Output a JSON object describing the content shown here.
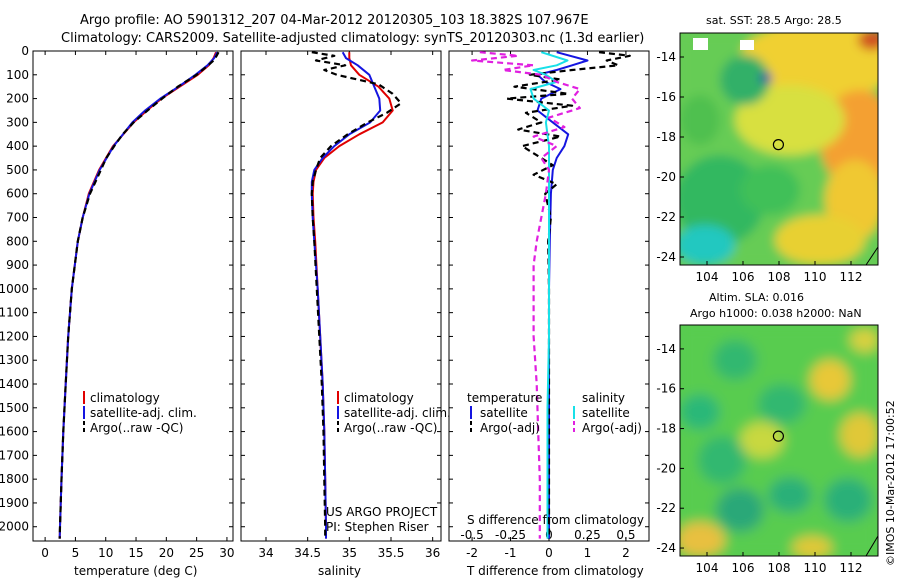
{
  "header": {
    "line1": "Argo profile: AO 5901312_207 04-Mar-2012 20120305_103 18.382S 107.967E",
    "line2": "Climatology: CARS2009. Satellite-adjusted climatology: synTS_20120303.nc (1.3d earlier)"
  },
  "colors": {
    "climatology": "#e00000",
    "satellite": "#1515e0",
    "argo": "#000000",
    "salinity_sat": "#18e0e8",
    "salinity_argo": "#e020e0"
  },
  "chart_data": [
    {
      "type": "line",
      "id": "temperature",
      "xlabel": "temperature (deg C)",
      "xlim": [
        -2,
        31
      ],
      "xticks": [
        0,
        5,
        10,
        15,
        20,
        25,
        30
      ],
      "ylim": [
        0,
        2060
      ],
      "yticks": [
        0,
        100,
        200,
        300,
        400,
        500,
        600,
        700,
        800,
        900,
        1000,
        1100,
        1200,
        1300,
        1400,
        1500,
        1600,
        1700,
        1800,
        1900,
        2000
      ],
      "legend": [
        "climatology",
        "satellite-adj. clim.",
        "Argo(..raw -QC)"
      ],
      "series": [
        {
          "name": "climatology",
          "depth": [
            5,
            30,
            60,
            100,
            150,
            200,
            250,
            300,
            400,
            500,
            600,
            700,
            800,
            1000,
            1200,
            1400,
            1600,
            1800,
            2000,
            2050
          ],
          "values": [
            28.2,
            27.8,
            27.0,
            25.2,
            22.2,
            19.2,
            16.8,
            14.6,
            11.2,
            8.9,
            7.2,
            6.2,
            5.4,
            4.4,
            3.8,
            3.4,
            3.0,
            2.7,
            2.45,
            2.4
          ]
        },
        {
          "name": "satellite",
          "depth": [
            5,
            30,
            60,
            100,
            150,
            200,
            250,
            300,
            400,
            500,
            600,
            700,
            800,
            1000,
            1200,
            1400,
            1600,
            1800,
            2000,
            2050
          ],
          "values": [
            28.4,
            27.9,
            26.8,
            24.8,
            22.0,
            19.0,
            16.5,
            14.4,
            11.3,
            9.0,
            7.3,
            6.2,
            5.4,
            4.4,
            3.8,
            3.4,
            3.0,
            2.7,
            2.45,
            2.4
          ]
        },
        {
          "name": "Argo",
          "depth": [
            5,
            20,
            40,
            60,
            100,
            150,
            200,
            250,
            300,
            350,
            400,
            450,
            500,
            600,
            700,
            800,
            1000,
            1200,
            1400,
            1600,
            1800,
            2000,
            2050
          ],
          "values": [
            28.6,
            28.3,
            27.8,
            26.9,
            25.0,
            21.9,
            19.3,
            16.9,
            14.6,
            12.8,
            11.4,
            10.1,
            9.2,
            7.4,
            6.2,
            5.4,
            4.4,
            3.8,
            3.4,
            3.0,
            2.7,
            2.45,
            2.4
          ]
        }
      ]
    },
    {
      "type": "line",
      "id": "salinity",
      "xlabel": "salinity",
      "xlim": [
        33.7,
        36.1
      ],
      "xticks": [
        34,
        34.5,
        35,
        35.5,
        36
      ],
      "ylim": [
        0,
        2060
      ],
      "legend": [
        "climatology",
        "satellite-adj. clim.",
        "Argo(..raw -QC)"
      ],
      "annotation": [
        "US ARGO PROJECT",
        "PI: Stephen Riser"
      ],
      "series": [
        {
          "name": "climatology",
          "depth": [
            5,
            30,
            60,
            100,
            150,
            200,
            250,
            300,
            350,
            400,
            450,
            500,
            550,
            600,
            700,
            800,
            1000,
            1200,
            1400,
            1600,
            1800,
            2000,
            2050
          ],
          "values": [
            35.0,
            35.0,
            35.02,
            35.12,
            35.35,
            35.48,
            35.52,
            35.4,
            35.12,
            34.88,
            34.7,
            34.6,
            34.57,
            34.56,
            34.57,
            34.59,
            34.62,
            34.65,
            34.68,
            34.7,
            34.71,
            34.72,
            34.72
          ]
        },
        {
          "name": "satellite",
          "depth": [
            5,
            30,
            60,
            100,
            150,
            200,
            250,
            300,
            350,
            400,
            450,
            500,
            550,
            600,
            700,
            800,
            1000,
            1200,
            1400,
            1600,
            1800,
            2000,
            2050
          ],
          "values": [
            34.92,
            34.96,
            35.1,
            35.24,
            35.3,
            35.36,
            35.37,
            35.25,
            35.0,
            34.82,
            34.68,
            34.58,
            34.55,
            34.55,
            34.56,
            34.58,
            34.62,
            34.65,
            34.68,
            34.7,
            34.71,
            34.72,
            34.72
          ]
        },
        {
          "name": "Argo",
          "depth": [
            5,
            20,
            40,
            60,
            80,
            100,
            140,
            180,
            220,
            260,
            300,
            350,
            400,
            450,
            500,
            550,
            600,
            700,
            800,
            1000,
            1200,
            1400,
            1600,
            1800,
            2000,
            2050
          ],
          "values": [
            34.55,
            34.82,
            34.6,
            34.95,
            34.7,
            34.85,
            35.35,
            35.52,
            35.62,
            35.45,
            35.22,
            34.98,
            34.78,
            34.65,
            34.6,
            34.56,
            34.55,
            34.56,
            34.58,
            34.61,
            34.64,
            34.67,
            34.69,
            34.7,
            34.71,
            34.71
          ]
        }
      ]
    },
    {
      "type": "line",
      "id": "difference",
      "xlabel": "T difference from climatology",
      "xlim": [
        -2.6,
        2.6
      ],
      "xticks": [
        -2,
        -1,
        0,
        1,
        2
      ],
      "secondary_xlabel": "S difference from climatology",
      "secondary_ticks": [
        {
          "v": -0.5,
          "label": "-0.5"
        },
        {
          "v": -0.25,
          "label": "-0.25"
        },
        {
          "v": 0,
          "label": "0"
        },
        {
          "v": 0.25,
          "label": "0.25"
        },
        {
          "v": 0.5,
          "label": "0.5"
        }
      ],
      "ylim": [
        0,
        2060
      ],
      "legend": {
        "temperature": {
          "title": "temperature",
          "items": [
            "satellite",
            "Argo(-adj)"
          ]
        },
        "salinity": {
          "title": "salinity",
          "items": [
            "satellite",
            "Argo(-adj)"
          ]
        }
      },
      "series": [
        {
          "name": "T satellite",
          "depth": [
            5,
            40,
            60,
            80,
            100,
            130,
            160,
            200,
            250,
            300,
            350,
            400,
            450,
            500,
            600,
            800,
            1000,
            1200,
            1500,
            1800,
            2050
          ],
          "values": [
            0.2,
            1.0,
            0.6,
            0.2,
            -0.3,
            -0.1,
            0.3,
            -0.2,
            -0.3,
            0.1,
            0.5,
            0.4,
            0.2,
            0.1,
            0.05,
            0.02,
            0,
            0,
            0,
            0,
            0
          ]
        },
        {
          "name": "T Argo",
          "depth": [
            5,
            20,
            40,
            60,
            80,
            100,
            120,
            150,
            180,
            200,
            230,
            260,
            300,
            330,
            360,
            400,
            440,
            480,
            520,
            560,
            600,
            700,
            800,
            1000,
            1200,
            1400,
            1600,
            1800,
            2000,
            2050
          ],
          "values": [
            1.3,
            2.1,
            1.5,
            1.8,
            0.6,
            -0.5,
            0.3,
            -0.9,
            0.5,
            -1.1,
            0.6,
            -0.6,
            -0.2,
            -0.8,
            0.3,
            -0.7,
            -0.3,
            0.1,
            -0.4,
            0.2,
            -0.1,
            0.05,
            -0.02,
            0,
            0,
            0,
            0,
            0,
            0,
            0
          ]
        },
        {
          "name": "S satellite",
          "depth": [
            5,
            40,
            60,
            80,
            100,
            130,
            160,
            200,
            250,
            300,
            400,
            500,
            600,
            800,
            1000,
            1200,
            1500,
            1800,
            2050
          ],
          "values": [
            -0.05,
            0.12,
            0.05,
            -0.1,
            -0.02,
            0.05,
            -0.12,
            -0.1,
            0.0,
            -0.02,
            0.0,
            0.0,
            0.0,
            0.0,
            0.0,
            0.0,
            -0.01,
            -0.01,
            -0.01
          ]
        },
        {
          "name": "S Argo",
          "depth": [
            5,
            20,
            40,
            60,
            80,
            100,
            130,
            160,
            200,
            240,
            280,
            320,
            360,
            400,
            450,
            500,
            600,
            700,
            800,
            900,
            1000,
            1200,
            1400,
            1600,
            1800,
            2000,
            2050
          ],
          "values": [
            -0.45,
            -0.2,
            -0.5,
            -0.1,
            -0.3,
            -0.05,
            0.05,
            0.2,
            0.15,
            0.2,
            0.0,
            0.1,
            -0.1,
            0.05,
            -0.05,
            0.0,
            -0.02,
            -0.05,
            -0.08,
            -0.1,
            -0.1,
            -0.1,
            -0.08,
            -0.07,
            -0.06,
            -0.06,
            -0.06
          ]
        }
      ]
    }
  ],
  "maps": [
    {
      "id": "sst",
      "title": "sat. SST: 28.5  Argo: 28.5",
      "title_line2": "",
      "lat_ticks": [
        -14,
        -16,
        -18,
        -20,
        -22,
        -24
      ],
      "lon_ticks": [
        104,
        106,
        108,
        110,
        112
      ],
      "marker": {
        "lon": 107.967,
        "lat": -18.382
      }
    },
    {
      "id": "sla",
      "title": "Altim. SLA: 0.016",
      "title_line2": "Argo h1000: 0.038 h2000: NaN",
      "lat_ticks": [
        -14,
        -16,
        -18,
        -20,
        -22,
        -24
      ],
      "lon_ticks": [
        104,
        106,
        108,
        110,
        112
      ],
      "marker": {
        "lon": 107.967,
        "lat": -18.382
      }
    }
  ],
  "footer_vertical": "©IMOS 10-Mar-2012 17:00:52"
}
